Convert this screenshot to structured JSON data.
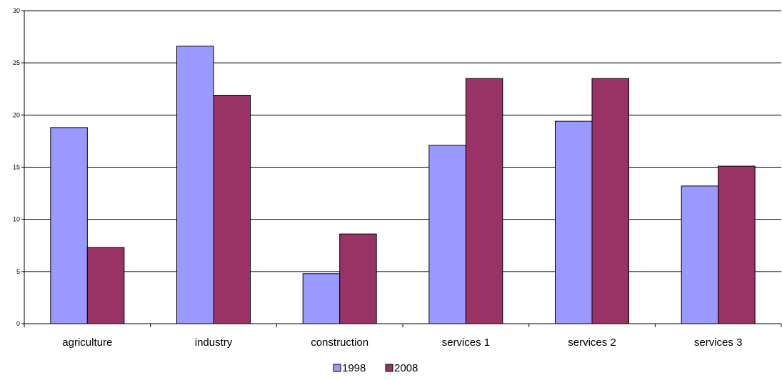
{
  "chart_data": {
    "type": "bar",
    "title": "",
    "xlabel": "",
    "ylabel": "",
    "categories": [
      "agriculture",
      "industry",
      "construction",
      "services 1",
      "services 2",
      "services 3"
    ],
    "series": [
      {
        "name": "1998",
        "color": "#9999ff",
        "values": [
          18.8,
          26.6,
          4.8,
          17.1,
          19.4,
          13.2
        ]
      },
      {
        "name": "2008",
        "color": "#993366",
        "values": [
          7.3,
          21.9,
          8.6,
          23.5,
          23.5,
          15.1
        ]
      }
    ],
    "ylim": [
      0,
      30
    ],
    "yticks": [
      "0",
      "5",
      "10",
      "15",
      "20",
      "25",
      "30"
    ],
    "grid": true,
    "legend_position": "bottom"
  }
}
